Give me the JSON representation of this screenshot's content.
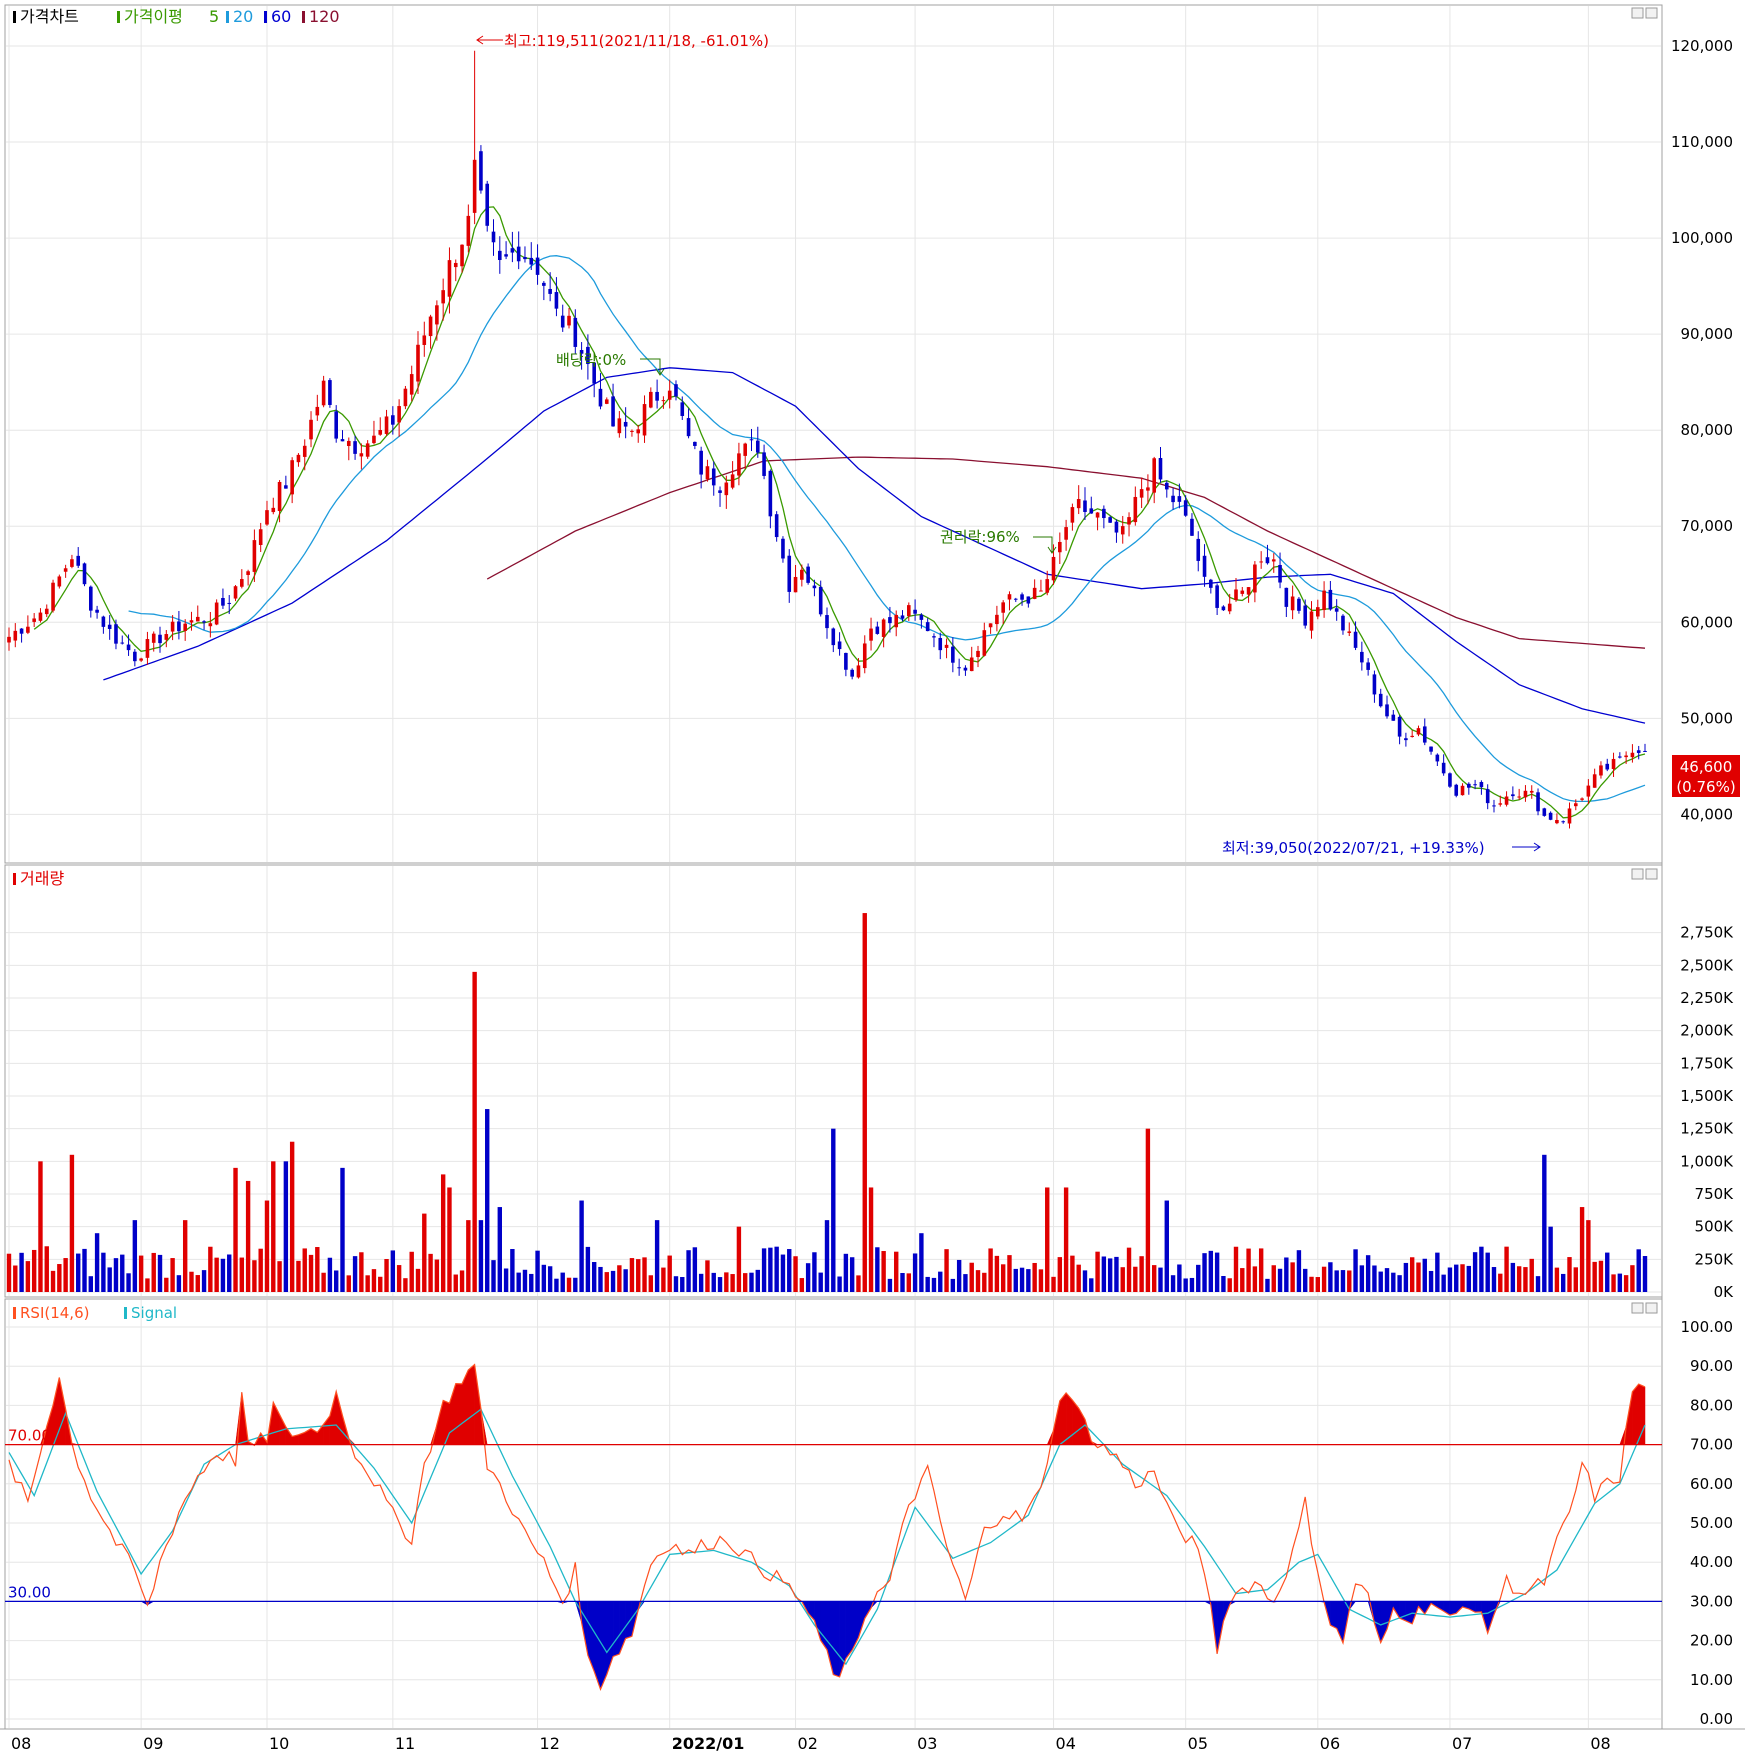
{
  "panels": {
    "price": {
      "legend": [
        "가격차트",
        "가격이평",
        "5",
        "20",
        "60",
        "120"
      ],
      "annotations": {
        "high": "최고:119,511(2021/11/18, -61.01%)",
        "low": "최저:39,050(2022/07/21, +19.33%)",
        "dividend": "배당락:0%",
        "rights": "권리락:96%"
      },
      "current_price": "46,600",
      "current_change": "(0.76%)"
    },
    "volume": {
      "legend": [
        "거래량"
      ]
    },
    "rsi": {
      "legend": [
        "RSI(14,6)",
        "Signal"
      ],
      "level_high": "70.00",
      "level_low": "30.00"
    }
  },
  "x_axis_labels": [
    "08",
    "09",
    "10",
    "11",
    "12",
    "2022/01",
    "02",
    "03",
    "04",
    "05",
    "06",
    "07",
    "08"
  ],
  "colors": {
    "up": "#e00000",
    "down": "#0000c8",
    "ma5": "#3a9a00",
    "ma20": "#1e9bdc",
    "ma60": "#0000d0",
    "ma120": "#8a1030",
    "rsi": "#ff5020",
    "signal": "#20b8c8",
    "grid": "#e6e6e6",
    "axis_text": "#000000"
  },
  "chart_data": [
    {
      "type": "candlestick",
      "title": "가격차트",
      "ylim": [
        36500,
        122500
      ],
      "yticks": [
        40000,
        50000,
        60000,
        70000,
        80000,
        90000,
        100000,
        110000,
        120000
      ],
      "ytick_labels": [
        "40,000",
        "50,000",
        "60,000",
        "70,000",
        "80,000",
        "90,000",
        "100,000",
        "110,000",
        "120,000"
      ],
      "x_label_index": [
        0,
        21,
        41,
        61,
        84,
        105,
        125,
        144,
        166,
        187,
        208,
        229,
        251
      ],
      "close_anchors": [
        [
          0,
          58500
        ],
        [
          5,
          61000
        ],
        [
          10,
          67000
        ],
        [
          13,
          62000
        ],
        [
          16,
          59000
        ],
        [
          20,
          56500
        ],
        [
          24,
          58500
        ],
        [
          28,
          60000
        ],
        [
          32,
          60500
        ],
        [
          35,
          62500
        ],
        [
          38,
          66000
        ],
        [
          41,
          72000
        ],
        [
          44,
          74500
        ],
        [
          47,
          79000
        ],
        [
          50,
          84500
        ],
        [
          52,
          80000
        ],
        [
          55,
          78500
        ],
        [
          58,
          79000
        ],
        [
          61,
          81000
        ],
        [
          64,
          86000
        ],
        [
          67,
          92000
        ],
        [
          70,
          97000
        ],
        [
          73,
          101500
        ],
        [
          74,
          107000
        ],
        [
          76,
          100000
        ],
        [
          78,
          97000
        ],
        [
          81,
          99000
        ],
        [
          84,
          97000
        ],
        [
          87,
          92000
        ],
        [
          90,
          90000
        ],
        [
          93,
          85000
        ],
        [
          96,
          80500
        ],
        [
          99,
          80000
        ],
        [
          102,
          83000
        ],
        [
          105,
          85000
        ],
        [
          108,
          79000
        ],
        [
          110,
          76000
        ],
        [
          113,
          74500
        ],
        [
          116,
          77500
        ],
        [
          119,
          78500
        ],
        [
          121,
          72000
        ],
        [
          124,
          64000
        ],
        [
          126,
          66000
        ],
        [
          129,
          61500
        ],
        [
          132,
          57000
        ],
        [
          134,
          54500
        ],
        [
          137,
          59500
        ],
        [
          140,
          60000
        ],
        [
          143,
          61000
        ],
        [
          146,
          59500
        ],
        [
          149,
          57000
        ],
        [
          152,
          55500
        ],
        [
          155,
          59000
        ],
        [
          158,
          62000
        ],
        [
          161,
          62500
        ],
        [
          164,
          63000
        ],
        [
          166,
          66000
        ],
        [
          168,
          70000
        ],
        [
          170,
          72000
        ],
        [
          173,
          71000
        ],
        [
          175,
          69500
        ],
        [
          177,
          69000
        ],
        [
          180,
          74000
        ],
        [
          182,
          76000
        ],
        [
          184,
          73500
        ],
        [
          186,
          72000
        ],
        [
          188,
          69000
        ],
        [
          190,
          64000
        ],
        [
          193,
          61500
        ],
        [
          196,
          63000
        ],
        [
          199,
          67000
        ],
        [
          201,
          66500
        ],
        [
          203,
          62500
        ],
        [
          206,
          60500
        ],
        [
          209,
          63000
        ],
        [
          212,
          59500
        ],
        [
          215,
          56000
        ],
        [
          218,
          51500
        ],
        [
          221,
          48000
        ],
        [
          224,
          49000
        ],
        [
          227,
          45500
        ],
        [
          230,
          42500
        ],
        [
          233,
          43000
        ],
        [
          236,
          41000
        ],
        [
          239,
          42500
        ],
        [
          242,
          42000
        ],
        [
          244,
          39800
        ],
        [
          247,
          39500
        ],
        [
          250,
          42000
        ],
        [
          253,
          44500
        ],
        [
          256,
          45500
        ],
        [
          258,
          47000
        ],
        [
          260,
          46600
        ]
      ],
      "ma120_anchors": [
        [
          76,
          64500
        ],
        [
          90,
          69500
        ],
        [
          105,
          73500
        ],
        [
          120,
          76800
        ],
        [
          135,
          77200
        ],
        [
          150,
          77000
        ],
        [
          165,
          76200
        ],
        [
          180,
          75000
        ],
        [
          190,
          73000
        ],
        [
          200,
          69500
        ],
        [
          210,
          66500
        ],
        [
          220,
          63500
        ],
        [
          230,
          60500
        ],
        [
          240,
          58300
        ],
        [
          260,
          57300
        ]
      ],
      "ma60_anchors": [
        [
          15,
          54000
        ],
        [
          30,
          57500
        ],
        [
          45,
          62000
        ],
        [
          60,
          68500
        ],
        [
          75,
          76500
        ],
        [
          85,
          82000
        ],
        [
          95,
          85500
        ],
        [
          105,
          86500
        ],
        [
          115,
          86000
        ],
        [
          125,
          82500
        ],
        [
          135,
          76000
        ],
        [
          145,
          71000
        ],
        [
          155,
          68000
        ],
        [
          165,
          65000
        ],
        [
          180,
          63500
        ],
        [
          190,
          64000
        ],
        [
          200,
          64700
        ],
        [
          210,
          65000
        ],
        [
          220,
          63000
        ],
        [
          230,
          58000
        ],
        [
          240,
          53500
        ],
        [
          250,
          51000
        ],
        [
          260,
          49500
        ]
      ],
      "last_close": 46600
    },
    {
      "type": "bar",
      "title": "거래량",
      "ylim": [
        0,
        3000000
      ],
      "yticks": [
        0,
        250000,
        500000,
        750000,
        1000000,
        1250000,
        1500000,
        1750000,
        2000000,
        2250000,
        2500000,
        2750000
      ],
      "ytick_labels": [
        "0K",
        "250K",
        "500K",
        "750K",
        "1,000K",
        "1,250K",
        "1,500K",
        "1,750K",
        "2,000K",
        "2,250K",
        "2,500K",
        "2,750K"
      ],
      "spikes": [
        [
          5,
          1000000
        ],
        [
          6,
          350000
        ],
        [
          10,
          1050000
        ],
        [
          14,
          450000
        ],
        [
          20,
          550000
        ],
        [
          28,
          550000
        ],
        [
          36,
          950000
        ],
        [
          38,
          850000
        ],
        [
          41,
          700000
        ],
        [
          42,
          1000000
        ],
        [
          44,
          1000000
        ],
        [
          45,
          1150000
        ],
        [
          53,
          950000
        ],
        [
          66,
          600000
        ],
        [
          69,
          900000
        ],
        [
          70,
          800000
        ],
        [
          73,
          550000
        ],
        [
          74,
          2450000
        ],
        [
          75,
          550000
        ],
        [
          76,
          1400000
        ],
        [
          78,
          650000
        ],
        [
          91,
          700000
        ],
        [
          103,
          550000
        ],
        [
          116,
          500000
        ],
        [
          130,
          550000
        ],
        [
          131,
          1250000
        ],
        [
          136,
          2900000
        ],
        [
          137,
          800000
        ],
        [
          145,
          450000
        ],
        [
          165,
          800000
        ],
        [
          168,
          800000
        ],
        [
          181,
          1250000
        ],
        [
          184,
          700000
        ],
        [
          244,
          1050000
        ],
        [
          245,
          500000
        ],
        [
          250,
          650000
        ],
        [
          251,
          550000
        ]
      ]
    },
    {
      "type": "line",
      "title": "RSI(14,6)",
      "ylim": [
        0,
        100
      ],
      "yticks": [
        0,
        10,
        20,
        30,
        40,
        50,
        60,
        70,
        80,
        90,
        100
      ],
      "ytick_labels": [
        "0.00",
        "10.00",
        "20.00",
        "30.00",
        "40.00",
        "50.00",
        "60.00",
        "70.00",
        "80.00",
        "90.00",
        "100.00"
      ],
      "levels": [
        70,
        30
      ],
      "rsi_anchors": [
        [
          0,
          65
        ],
        [
          3,
          55
        ],
        [
          6,
          75
        ],
        [
          8,
          88
        ],
        [
          10,
          70
        ],
        [
          13,
          57
        ],
        [
          17,
          45
        ],
        [
          20,
          38
        ],
        [
          22,
          28
        ],
        [
          24,
          40
        ],
        [
          27,
          53
        ],
        [
          30,
          62
        ],
        [
          33,
          68
        ],
        [
          36,
          66
        ],
        [
          37,
          83
        ],
        [
          38,
          69
        ],
        [
          41,
          72
        ],
        [
          42,
          80
        ],
        [
          44,
          73
        ],
        [
          47,
          73
        ],
        [
          50,
          75
        ],
        [
          52,
          83
        ],
        [
          55,
          68
        ],
        [
          58,
          61
        ],
        [
          61,
          52
        ],
        [
          64,
          46
        ],
        [
          66,
          65
        ],
        [
          69,
          80
        ],
        [
          72,
          87
        ],
        [
          74,
          90
        ],
        [
          76,
          65
        ],
        [
          79,
          57
        ],
        [
          82,
          47
        ],
        [
          85,
          40
        ],
        [
          88,
          30
        ],
        [
          90,
          38
        ],
        [
          92,
          15
        ],
        [
          94,
          9
        ],
        [
          96,
          16
        ],
        [
          99,
          22
        ],
        [
          102,
          40
        ],
        [
          105,
          45
        ],
        [
          108,
          42
        ],
        [
          111,
          45
        ],
        [
          114,
          46
        ],
        [
          117,
          42
        ],
        [
          120,
          38
        ],
        [
          123,
          35
        ],
        [
          126,
          30
        ],
        [
          129,
          20
        ],
        [
          132,
          9
        ],
        [
          134,
          18
        ],
        [
          137,
          30
        ],
        [
          140,
          35
        ],
        [
          143,
          55
        ],
        [
          146,
          63
        ],
        [
          149,
          44
        ],
        [
          152,
          30
        ],
        [
          155,
          48
        ],
        [
          158,
          53
        ],
        [
          161,
          51
        ],
        [
          164,
          58
        ],
        [
          166,
          75
        ],
        [
          168,
          85
        ],
        [
          170,
          78
        ],
        [
          173,
          70
        ],
        [
          176,
          67
        ],
        [
          179,
          60
        ],
        [
          182,
          63
        ],
        [
          185,
          50
        ],
        [
          188,
          45
        ],
        [
          190,
          38
        ],
        [
          192,
          18
        ],
        [
          194,
          31
        ],
        [
          198,
          35
        ],
        [
          201,
          30
        ],
        [
          204,
          42
        ],
        [
          206,
          55
        ],
        [
          208,
          38
        ],
        [
          210,
          24
        ],
        [
          212,
          20
        ],
        [
          214,
          35
        ],
        [
          216,
          31
        ],
        [
          218,
          18
        ],
        [
          220,
          28
        ],
        [
          223,
          26
        ],
        [
          226,
          30
        ],
        [
          229,
          25
        ],
        [
          232,
          30
        ],
        [
          235,
          23
        ],
        [
          238,
          35
        ],
        [
          241,
          32
        ],
        [
          244,
          35
        ],
        [
          246,
          45
        ],
        [
          248,
          52
        ],
        [
          250,
          65
        ],
        [
          252,
          57
        ],
        [
          254,
          60
        ],
        [
          256,
          62
        ],
        [
          258,
          84
        ],
        [
          260,
          85
        ]
      ],
      "signal_anchors": [
        [
          0,
          68
        ],
        [
          4,
          57
        ],
        [
          9,
          78
        ],
        [
          14,
          58
        ],
        [
          21,
          37
        ],
        [
          26,
          48
        ],
        [
          31,
          65
        ],
        [
          36,
          70
        ],
        [
          44,
          74
        ],
        [
          52,
          75
        ],
        [
          58,
          64
        ],
        [
          64,
          50
        ],
        [
          70,
          73
        ],
        [
          75,
          79
        ],
        [
          80,
          62
        ],
        [
          86,
          44
        ],
        [
          90,
          30
        ],
        [
          95,
          17
        ],
        [
          100,
          28
        ],
        [
          105,
          42
        ],
        [
          112,
          43
        ],
        [
          118,
          40
        ],
        [
          124,
          34
        ],
        [
          128,
          24
        ],
        [
          133,
          14
        ],
        [
          138,
          28
        ],
        [
          144,
          54
        ],
        [
          150,
          41
        ],
        [
          156,
          45
        ],
        [
          162,
          52
        ],
        [
          167,
          70
        ],
        [
          171,
          75
        ],
        [
          177,
          65
        ],
        [
          184,
          57
        ],
        [
          190,
          44
        ],
        [
          195,
          32
        ],
        [
          200,
          33
        ],
        [
          205,
          40
        ],
        [
          208,
          42
        ],
        [
          213,
          28
        ],
        [
          218,
          24
        ],
        [
          223,
          27
        ],
        [
          229,
          26
        ],
        [
          235,
          27
        ],
        [
          241,
          32
        ],
        [
          246,
          38
        ],
        [
          252,
          55
        ],
        [
          256,
          60
        ],
        [
          260,
          75
        ]
      ]
    }
  ]
}
